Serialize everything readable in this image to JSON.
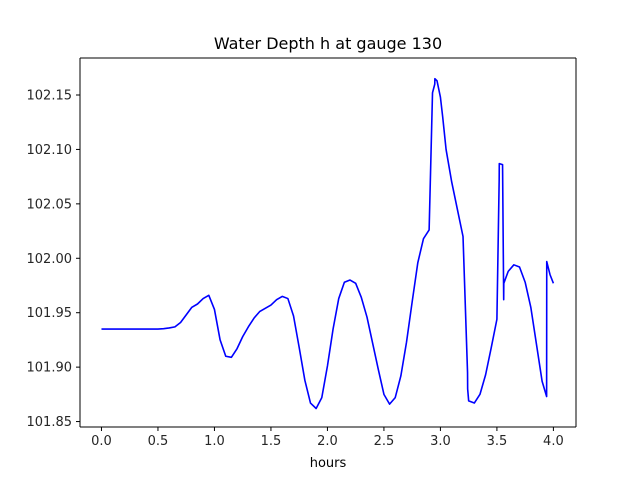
{
  "chart_data": {
    "type": "line",
    "title": "Water Depth h at gauge 130",
    "xlabel": "hours",
    "ylabel": "",
    "xlim": [
      -0.19,
      4.2
    ],
    "ylim": [
      101.845,
      102.184
    ],
    "grid": false,
    "line_color": "#0000ff",
    "x_ticks": [
      0.0,
      0.5,
      1.0,
      1.5,
      2.0,
      2.5,
      3.0,
      3.5,
      4.0
    ],
    "x_tick_labels": [
      "0.0",
      "0.5",
      "1.0",
      "1.5",
      "2.0",
      "2.5",
      "3.0",
      "3.5",
      "4.0"
    ],
    "y_ticks": [
      101.85,
      101.9,
      101.95,
      102.0,
      102.05,
      102.1,
      102.15
    ],
    "y_tick_labels": [
      "101.85",
      "101.90",
      "101.95",
      "102.00",
      "102.05",
      "102.10",
      "102.15"
    ],
    "series": [
      {
        "x": [
          0.0,
          0.1,
          0.2,
          0.3,
          0.4,
          0.5,
          0.55,
          0.6,
          0.65,
          0.7,
          0.75,
          0.8,
          0.85,
          0.9,
          0.95,
          1.0,
          1.05,
          1.1,
          1.15,
          1.2,
          1.25,
          1.3,
          1.35,
          1.4,
          1.45,
          1.5,
          1.55,
          1.6,
          1.65,
          1.7,
          1.75,
          1.8,
          1.85,
          1.9,
          1.95,
          2.0,
          2.05,
          2.1,
          2.15,
          2.2,
          2.25,
          2.3,
          2.35,
          2.4,
          2.45,
          2.5,
          2.55,
          2.6,
          2.65,
          2.7,
          2.75,
          2.8,
          2.85,
          2.9,
          2.93,
          2.95,
          2.951,
          2.97,
          3.0,
          3.02,
          3.05,
          3.1,
          3.15,
          3.2,
          3.24,
          3.241,
          3.25,
          3.3,
          3.35,
          3.4,
          3.45,
          3.5,
          3.52,
          3.521,
          3.55,
          3.56,
          3.561,
          3.6,
          3.65,
          3.7,
          3.75,
          3.8,
          3.85,
          3.9,
          3.94,
          3.941,
          3.97,
          4.0
        ],
        "y": [
          101.935,
          101.935,
          101.935,
          101.935,
          101.935,
          101.935,
          101.9353,
          101.936,
          101.937,
          101.941,
          101.948,
          101.955,
          101.958,
          101.963,
          101.966,
          101.953,
          101.925,
          101.91,
          101.909,
          101.917,
          101.928,
          101.937,
          101.945,
          101.951,
          101.954,
          101.957,
          101.962,
          101.965,
          101.963,
          101.947,
          101.918,
          101.888,
          101.867,
          101.862,
          101.872,
          101.901,
          101.935,
          101.963,
          101.978,
          101.98,
          101.977,
          101.964,
          101.946,
          101.922,
          101.898,
          101.875,
          101.866,
          101.872,
          101.892,
          101.923,
          101.96,
          101.996,
          102.018,
          102.026,
          102.152,
          102.16,
          102.165,
          102.163,
          102.148,
          102.13,
          102.1,
          102.07,
          102.045,
          102.02,
          101.895,
          101.88,
          101.869,
          101.867,
          101.875,
          101.893,
          101.918,
          101.944,
          102.072,
          102.087,
          102.086,
          101.962,
          101.977,
          101.988,
          101.994,
          101.992,
          101.978,
          101.955,
          101.921,
          101.887,
          101.873,
          101.997,
          101.985,
          101.977
        ]
      }
    ]
  }
}
